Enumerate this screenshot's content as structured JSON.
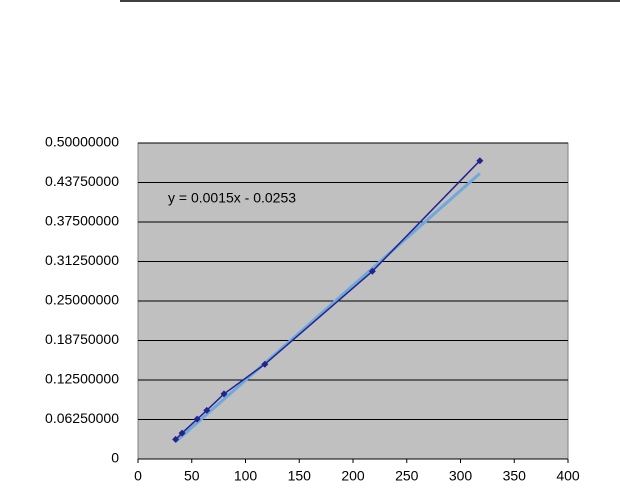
{
  "chart_data": {
    "type": "scatter",
    "annotation": "y = 0.0015x - 0.0253",
    "x": [
      35,
      41,
      55,
      64,
      80,
      118,
      218,
      318
    ],
    "series": [
      {
        "color": "#23238e",
        "values": [
          0.031,
          0.041,
          0.063,
          0.077,
          0.103,
          0.15,
          0.297,
          0.472
        ]
      }
    ],
    "trendline": {
      "slope": 0.0015,
      "intercept": -0.0253,
      "color": "#6fa8dc"
    },
    "xlim": [
      0,
      400
    ],
    "xticks": [
      0,
      50,
      100,
      150,
      200,
      250,
      300,
      350,
      400
    ],
    "ylim": [
      0,
      0.5
    ],
    "yticks": [
      0,
      {
        "value": 0.0625,
        "label": "0.06250000"
      },
      {
        "value": 0.125,
        "label": "0.12500000"
      },
      {
        "value": 0.1875,
        "label": "0.18750000"
      },
      {
        "value": 0.25,
        "label": "0.25000000"
      },
      {
        "value": 0.3125,
        "label": "0.31250000"
      },
      {
        "value": 0.375,
        "label": "0.37500000"
      },
      {
        "value": 0.4375,
        "label": "0.43750000"
      },
      {
        "value": 0.5,
        "label": "0.50000000"
      }
    ],
    "grid": true,
    "plot_background": "#c0c0c0"
  }
}
